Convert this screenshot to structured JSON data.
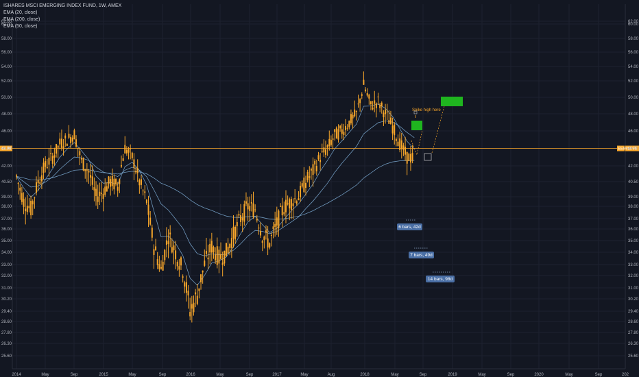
{
  "chart_data": {
    "type": "candlestick",
    "title": "ISHARES MSCI EMERGING INDEX FUND, 1W, AMEX",
    "indicators": [
      "EMA (20, close)",
      "EMA (200, close)",
      "EMA (50, close)"
    ],
    "y_ticks": [
      "62.00",
      "60.00",
      "58.00",
      "56.00",
      "54.00",
      "52.00",
      "50.00",
      "48.00",
      "46.00",
      "44.00",
      "42.00",
      "40.50",
      "39.00",
      "38.00",
      "37.00",
      "36.00",
      "35.00",
      "34.00",
      "33.00",
      "32.00",
      "31.00",
      "30.20",
      "29.40",
      "28.60",
      "27.80",
      "26.30",
      "25.60"
    ],
    "ylim_note": "non-linear price axis",
    "x_ticks": [
      "2014",
      "May",
      "Sep",
      "2015",
      "May",
      "Sep",
      "2016",
      "May",
      "Sep",
      "2017",
      "May",
      "Aug",
      "2018",
      "May",
      "Sep",
      "2019",
      "May",
      "Sep",
      "2020",
      "May",
      "Sep",
      "202"
    ],
    "current_price_label": "43.96",
    "current_price_left_label": "43.96",
    "current_price": 43.96,
    "price_path": [
      {
        "date": "2014-01",
        "price": 41.0
      },
      {
        "date": "2014-02",
        "price": 38.5
      },
      {
        "date": "2014-03",
        "price": 37.8
      },
      {
        "date": "2014-04",
        "price": 40.5
      },
      {
        "date": "2014-05",
        "price": 42.0
      },
      {
        "date": "2014-06",
        "price": 43.0
      },
      {
        "date": "2014-07",
        "price": 44.5
      },
      {
        "date": "2014-08",
        "price": 45.0
      },
      {
        "date": "2014-09",
        "price": 45.6
      },
      {
        "date": "2014-10",
        "price": 42.5
      },
      {
        "date": "2014-11",
        "price": 41.5
      },
      {
        "date": "2014-12",
        "price": 39.0
      },
      {
        "date": "2015-01",
        "price": 39.5
      },
      {
        "date": "2015-02",
        "price": 40.5
      },
      {
        "date": "2015-03",
        "price": 40.0
      },
      {
        "date": "2015-04",
        "price": 44.0
      },
      {
        "date": "2015-05",
        "price": 43.0
      },
      {
        "date": "2015-06",
        "price": 40.5
      },
      {
        "date": "2015-07",
        "price": 38.5
      },
      {
        "date": "2015-08",
        "price": 34.5
      },
      {
        "date": "2015-09",
        "price": 32.5
      },
      {
        "date": "2015-10",
        "price": 35.5
      },
      {
        "date": "2015-11",
        "price": 34.0
      },
      {
        "date": "2015-12",
        "price": 32.5
      },
      {
        "date": "2016-01",
        "price": 29.4
      },
      {
        "date": "2016-02",
        "price": 30.5
      },
      {
        "date": "2016-03",
        "price": 33.0
      },
      {
        "date": "2016-04",
        "price": 34.5
      },
      {
        "date": "2016-05",
        "price": 33.5
      },
      {
        "date": "2016-06",
        "price": 34.0
      },
      {
        "date": "2016-07",
        "price": 35.5
      },
      {
        "date": "2016-08",
        "price": 37.0
      },
      {
        "date": "2016-09",
        "price": 38.0
      },
      {
        "date": "2016-10",
        "price": 37.8
      },
      {
        "date": "2016-11",
        "price": 35.5
      },
      {
        "date": "2016-12",
        "price": 34.8
      },
      {
        "date": "2017-01",
        "price": 36.5
      },
      {
        "date": "2017-02",
        "price": 38.0
      },
      {
        "date": "2017-03",
        "price": 38.5
      },
      {
        "date": "2017-04",
        "price": 39.0
      },
      {
        "date": "2017-05",
        "price": 40.5
      },
      {
        "date": "2017-06",
        "price": 41.5
      },
      {
        "date": "2017-07",
        "price": 43.0
      },
      {
        "date": "2017-08",
        "price": 44.0
      },
      {
        "date": "2017-09",
        "price": 45.5
      },
      {
        "date": "2017-10",
        "price": 46.0
      },
      {
        "date": "2017-11",
        "price": 47.0
      },
      {
        "date": "2017-12",
        "price": 48.0
      },
      {
        "date": "2018-01",
        "price": 51.5
      },
      {
        "date": "2018-02",
        "price": 49.0
      },
      {
        "date": "2018-03",
        "price": 49.5
      },
      {
        "date": "2018-04",
        "price": 48.0
      },
      {
        "date": "2018-05",
        "price": 46.5
      },
      {
        "date": "2018-06",
        "price": 44.5
      },
      {
        "date": "2018-07",
        "price": 43.0
      },
      {
        "date": "2018-08",
        "price": 42.8
      }
    ],
    "annotations": {
      "spike_label": "Spike high here",
      "measure_1": "6 bars, 42d",
      "measure_2": "7 bars, 49d",
      "measure_3": "14 bars, 98d"
    },
    "colors": {
      "background": "#131722",
      "candle": "#f7a62a",
      "ema": "#7aa7cf",
      "price_line": "#f7a62a",
      "target_box": "#1fb51f",
      "measure_badge": "#4a6fa5"
    }
  }
}
